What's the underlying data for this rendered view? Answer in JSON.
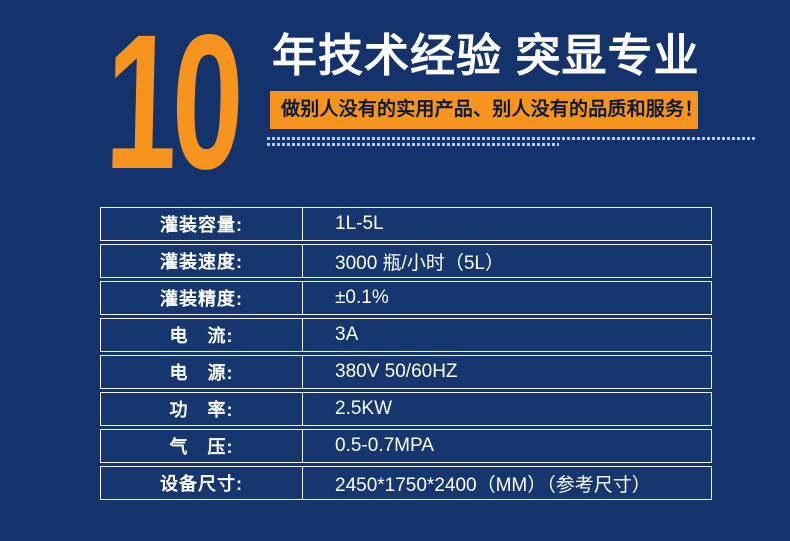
{
  "colors": {
    "background_navy": "#14336D",
    "accent_orange": "#F7941E",
    "banner_text_dark": "#0E1B36",
    "table_border_white": "#F2F5FA",
    "text_white": "#FFFFFF"
  },
  "header": {
    "big_number": "10",
    "title": "年技术经验 突显专业",
    "slogan": "做别人没有的实用产品、别人没有的品质和服务！"
  },
  "spec_table": {
    "rows": [
      {
        "label": "灌装容量:",
        "value": "1L-5L"
      },
      {
        "label": "灌装速度:",
        "value": "3000 瓶/小时（5L）"
      },
      {
        "label": "灌装精度:",
        "value": "±0.1%"
      },
      {
        "label": "电　流:",
        "value": "3A"
      },
      {
        "label": "电　源:",
        "value": "380V 50/60HZ"
      },
      {
        "label": "功　率:",
        "value": "2.5KW"
      },
      {
        "label": "气　压:",
        "value": "0.5-0.7MPA"
      },
      {
        "label": "设备尺寸:",
        "value": "2450*1750*2400（MM）（参考尺寸）"
      }
    ]
  }
}
